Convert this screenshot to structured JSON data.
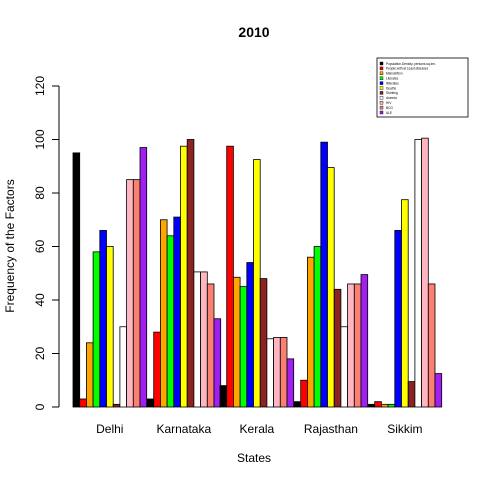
{
  "chart_data": {
    "type": "bar",
    "title": "2010",
    "xlabel": "States",
    "ylabel": "Frequency of the Factors",
    "ylim": [
      0,
      120
    ],
    "yticks": [
      0,
      20,
      40,
      60,
      80,
      100,
      120
    ],
    "grid": false,
    "legend_position": "top-right",
    "categories": [
      "Delhi",
      "Karnataka",
      "Kerala",
      "Rajasthan",
      "Sikkim"
    ],
    "series": [
      {
        "name": "Population.Density..persons.sq.km.",
        "color": "#000000",
        "values": [
          95,
          3,
          8,
          2,
          1
        ]
      },
      {
        "name": "People.with.at.Least.diseases",
        "color": "#ff0000",
        "values": [
          3,
          28,
          97.5,
          10,
          2
        ]
      },
      {
        "name": "Malnutrition",
        "color": "#ffa500",
        "values": [
          24,
          70,
          48.5,
          56,
          1
        ]
      },
      {
        "name": "Literates",
        "color": "#00ff00",
        "values": [
          58,
          64,
          45,
          60,
          1
        ]
      },
      {
        "name": "Illiterates",
        "color": "#0000ff",
        "values": [
          66,
          71,
          54,
          99,
          66
        ]
      },
      {
        "name": "Deaths",
        "color": "#ffff00",
        "values": [
          60,
          97.5,
          92.5,
          89.5,
          77.5
        ]
      },
      {
        "name": "Stunting",
        "color": "#8b2323",
        "values": [
          1,
          100,
          48,
          44,
          9.5
        ]
      },
      {
        "name": "Anemia",
        "color": "#ffffff",
        "values": [
          30,
          50.5,
          25.5,
          30,
          100
        ]
      },
      {
        "name": "HIV",
        "color": "#ffb6c1",
        "values": [
          85,
          50.5,
          26,
          46,
          100.5
        ]
      },
      {
        "name": "BCG",
        "color": "#fa8072",
        "values": [
          85,
          46,
          26,
          46,
          46
        ]
      },
      {
        "name": "ALE",
        "color": "#a020f0",
        "values": [
          97,
          33,
          18,
          49.5,
          12.5
        ]
      }
    ]
  }
}
